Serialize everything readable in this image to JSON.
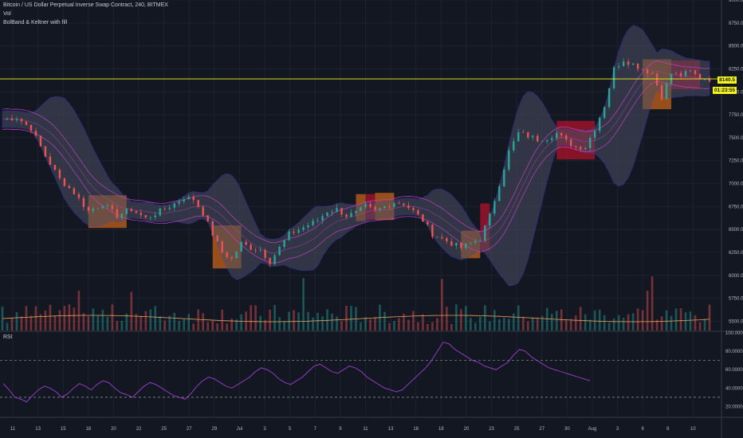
{
  "header": {
    "symbol_line": "Bitcoin / US Dollar Perpetual Inverse Swap Contract, 240, BITMEX",
    "indicator_1": "Vol",
    "indicator_2": "BolBand & Keltner with fill"
  },
  "rsi_panel": {
    "label": "RSI"
  },
  "price_badge": {
    "last": "8140.5",
    "countdown": "01:23:55"
  },
  "colors": {
    "background": "#131722",
    "up": "#26a69a",
    "down": "#ef5350",
    "bb_fill": "#4a4f63",
    "bb_line": "#3f3fd1",
    "kc_line": "#c43fc4",
    "squeeze_orange": "#b85c1a",
    "squeeze_red": "#a5132a",
    "last_price_line": "#f5f518",
    "rsi_line": "#a23ed4",
    "vol_ma": "#e9a05a"
  },
  "chart_data": [
    {
      "type": "candlestick",
      "title": "Bitcoin / US Dollar Perpetual Inverse Swap Contract, 240, BITMEX",
      "x_ticks": [
        "11",
        "13",
        "15",
        "18",
        "20",
        "22",
        "25",
        "27",
        "29",
        "Jul",
        "3",
        "5",
        "7",
        "9",
        "11",
        "13",
        "16",
        "18",
        "20",
        "23",
        "25",
        "27",
        "30",
        "Aug",
        "3",
        "6",
        "8",
        "10"
      ],
      "y_ticks": [
        "9000.0",
        "8750.0",
        "8500.0",
        "8250.0",
        "8000.0",
        "7750.0",
        "7500.0",
        "7250.0",
        "7000.0",
        "6750.0",
        "6500.0",
        "6250.0",
        "6000.0",
        "5750.0",
        "5500.0"
      ],
      "ylim": [
        5400,
        9000
      ],
      "close_path": [
        [
          0,
          7700
        ],
        [
          3,
          7720
        ],
        [
          6,
          7600
        ],
        [
          9,
          7300
        ],
        [
          12,
          7050
        ],
        [
          15,
          6900
        ],
        [
          18,
          6700
        ],
        [
          21,
          6780
        ],
        [
          24,
          6650
        ],
        [
          27,
          6720
        ],
        [
          30,
          6620
        ],
        [
          33,
          6700
        ],
        [
          36,
          6780
        ],
        [
          38,
          6850
        ],
        [
          40,
          6830
        ],
        [
          42,
          6680
        ],
        [
          44,
          6450
        ],
        [
          46,
          6250
        ],
        [
          48,
          6180
        ],
        [
          50,
          6350
        ],
        [
          52,
          6300
        ],
        [
          54,
          6280
        ],
        [
          56,
          6150
        ],
        [
          58,
          6300
        ],
        [
          60,
          6450
        ],
        [
          62,
          6500
        ],
        [
          64,
          6550
        ],
        [
          66,
          6600
        ],
        [
          68,
          6700
        ],
        [
          70,
          6720
        ],
        [
          72,
          6650
        ],
        [
          74,
          6680
        ],
        [
          76,
          6750
        ],
        [
          78,
          6700
        ],
        [
          80,
          6750
        ],
        [
          82,
          6800
        ],
        [
          84,
          6780
        ],
        [
          86,
          6700
        ],
        [
          88,
          6600
        ],
        [
          90,
          6450
        ],
        [
          92,
          6400
        ],
        [
          94,
          6350
        ],
        [
          96,
          6300
        ],
        [
          98,
          6350
        ],
        [
          100,
          6400
        ],
        [
          102,
          6650
        ],
        [
          104,
          7000
        ],
        [
          106,
          7350
        ],
        [
          108,
          7550
        ],
        [
          110,
          7520
        ],
        [
          112,
          7480
        ],
        [
          114,
          7500
        ],
        [
          116,
          7550
        ],
        [
          118,
          7460
        ],
        [
          120,
          7400
        ],
        [
          122,
          7400
        ],
        [
          124,
          7600
        ],
        [
          126,
          7850
        ],
        [
          128,
          8250
        ],
        [
          130,
          8350
        ],
        [
          132,
          8300
        ],
        [
          134,
          8250
        ],
        [
          136,
          8200
        ],
        [
          138,
          7950
        ],
        [
          140,
          8200
        ],
        [
          142,
          8180
        ],
        [
          144,
          8220
        ],
        [
          146,
          8150
        ],
        [
          148,
          8140
        ]
      ],
      "squeeze_zones": [
        {
          "from": 18,
          "to": 26,
          "color": "orange"
        },
        {
          "from": 44,
          "to": 50,
          "color": "orange"
        },
        {
          "from": 74,
          "to": 76,
          "color": "orange"
        },
        {
          "from": 76,
          "to": 78,
          "color": "red"
        },
        {
          "from": 78,
          "to": 82,
          "color": "orange"
        },
        {
          "from": 96,
          "to": 100,
          "color": "orange"
        },
        {
          "from": 100,
          "to": 102,
          "color": "red"
        },
        {
          "from": 116,
          "to": 124,
          "color": "red"
        },
        {
          "from": 134,
          "to": 140,
          "color": "orange"
        },
        {
          "from": 140,
          "to": 146,
          "color": "red"
        }
      ],
      "last_price": 8140.5
    },
    {
      "type": "line",
      "title": "RSI",
      "y_ticks": [
        "100.0000",
        "80.0000",
        "60.0000",
        "40.0000",
        "20.0000"
      ],
      "ylim": [
        10,
        100
      ],
      "levels": [
        70,
        30
      ],
      "values": [
        45,
        38,
        30,
        28,
        25,
        32,
        38,
        42,
        40,
        36,
        30,
        34,
        40,
        45,
        42,
        38,
        44,
        48,
        46,
        40,
        35,
        33,
        30,
        36,
        42,
        46,
        44,
        40,
        36,
        32,
        30,
        28,
        34,
        42,
        48,
        52,
        50,
        46,
        42,
        40,
        44,
        48,
        52,
        58,
        62,
        60,
        56,
        50,
        46,
        44,
        48,
        52,
        58,
        64,
        66,
        62,
        58,
        56,
        60,
        64,
        62,
        58,
        52,
        48,
        44,
        40,
        38,
        36,
        38,
        44,
        50,
        56,
        62,
        70,
        80,
        90,
        88,
        82,
        78,
        74,
        70,
        68,
        64,
        62,
        60,
        64,
        68,
        76,
        82,
        80,
        74,
        70,
        66,
        62,
        60,
        58,
        56,
        54,
        52,
        50,
        48
      ]
    }
  ]
}
